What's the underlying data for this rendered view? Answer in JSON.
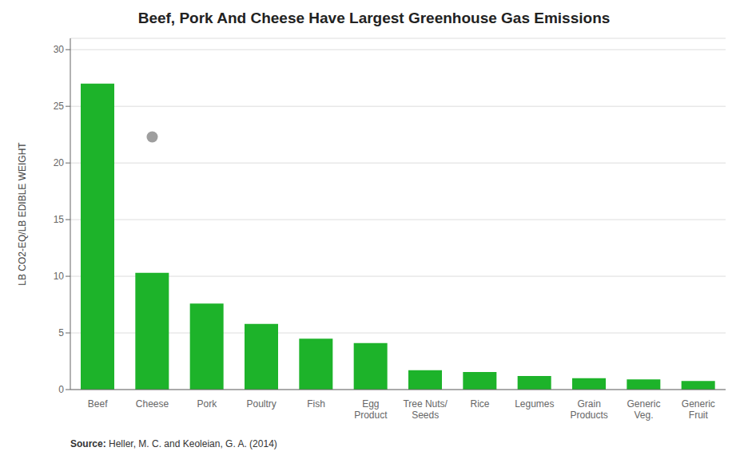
{
  "chart_data": {
    "type": "bar",
    "title": "Beef, Pork And Cheese Have Largest Greenhouse Gas Emissions",
    "categories": [
      "Beef",
      "Cheese",
      "Pork",
      "Poultry",
      "Fish",
      "Egg\nProduct",
      "Tree Nuts/\nSeeds",
      "Rice",
      "Legumes",
      "Grain\nProducts",
      "Generic\nVeg.",
      "Generic\nFruit"
    ],
    "values": [
      27.0,
      10.3,
      7.6,
      5.8,
      4.5,
      4.1,
      1.7,
      1.55,
      1.2,
      1.0,
      0.9,
      0.75
    ],
    "color": "#1db32a",
    "ylabel": "LB CO2-EQ/LB EDIBLE WEIGHT",
    "ylim": [
      0,
      31
    ],
    "yticks": [
      0,
      5,
      10,
      15,
      20,
      25,
      30
    ],
    "grid": true,
    "points": [
      {
        "category": "Cheese",
        "value": 22.3,
        "color": "#9e9e9e"
      }
    ],
    "annotations": [
      "Source: Heller, M. C. and Keoleian, G. A. (2014)"
    ]
  }
}
